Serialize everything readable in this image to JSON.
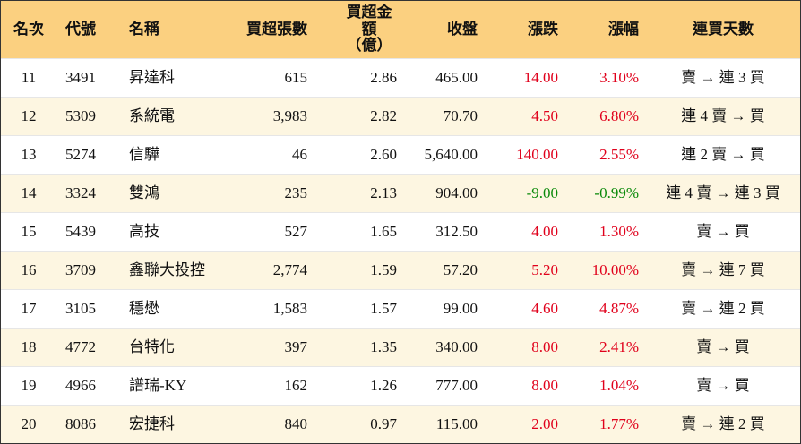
{
  "table": {
    "header": [
      "名次",
      "代號",
      "名稱",
      "買超張數",
      "買超金額\n（億）",
      "收盤",
      "漲跌",
      "漲幅",
      "連買天數"
    ],
    "rows": [
      [
        "11",
        "3491",
        "昇達科",
        "615",
        "2.86",
        "465.00",
        "14.00",
        "3.10%",
        "賣 → 連 3 買"
      ],
      [
        "12",
        "5309",
        "系統電",
        "3,983",
        "2.82",
        "70.70",
        "4.50",
        "6.80%",
        "連 4 賣 → 買"
      ],
      [
        "13",
        "5274",
        "信驊",
        "46",
        "2.60",
        "5,640.00",
        "140.00",
        "2.55%",
        "連 2 賣 → 買"
      ],
      [
        "14",
        "3324",
        "雙鴻",
        "235",
        "2.13",
        "904.00",
        "-9.00",
        "-0.99%",
        "連 4 賣 → 連 3 買"
      ],
      [
        "15",
        "5439",
        "高技",
        "527",
        "1.65",
        "312.50",
        "4.00",
        "1.30%",
        "賣 → 買"
      ],
      [
        "16",
        "3709",
        "鑫聯大投控",
        "2,774",
        "1.59",
        "57.20",
        "5.20",
        "10.00%",
        "賣 → 連 7 買"
      ],
      [
        "17",
        "3105",
        "穩懋",
        "1,583",
        "1.57",
        "99.00",
        "4.60",
        "4.87%",
        "賣 → 連 2 買"
      ],
      [
        "18",
        "4772",
        "台特化",
        "397",
        "1.35",
        "340.00",
        "8.00",
        "2.41%",
        "賣 → 買"
      ],
      [
        "19",
        "4966",
        "譜瑞-KY",
        "162",
        "1.26",
        "777.00",
        "8.00",
        "1.04%",
        "賣 → 買"
      ],
      [
        "20",
        "8086",
        "宏捷科",
        "840",
        "0.97",
        "115.00",
        "2.00",
        "1.77%",
        "賣 → 連 2 買"
      ]
    ]
  }
}
